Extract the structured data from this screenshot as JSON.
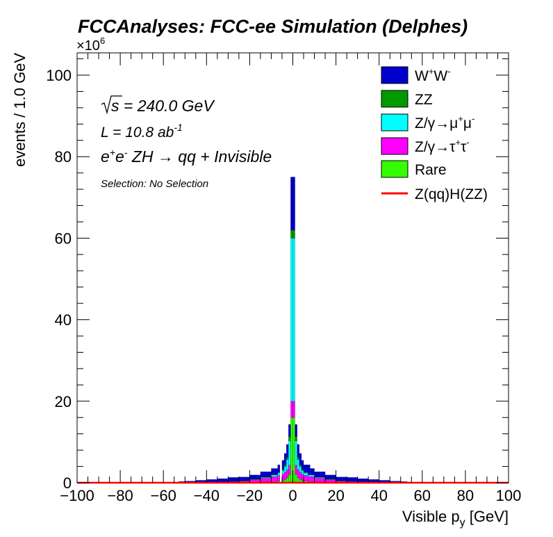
{
  "chart_data": {
    "type": "bar",
    "stacked": true,
    "title": "FCCAnalyses: FCC-ee Simulation (Delphes)",
    "xlabel": "Visible p_y [GeV]",
    "ylabel": "events / 1.0 GeV",
    "xlim": [
      -100,
      100
    ],
    "ylim": [
      0,
      105
    ],
    "y_multiplier": "×10^6",
    "xticks": [
      -100,
      -80,
      -60,
      -40,
      -20,
      0,
      20,
      40,
      60,
      80,
      100
    ],
    "yticks": [
      0,
      20,
      40,
      60,
      80,
      100
    ],
    "grid": false,
    "legend_position": "top-right",
    "annotations": {
      "sqrt_s": "240.0 GeV",
      "luminosity": "10.8 ab",
      "luminosity_exp": "-1",
      "process": "ZH → qq + Invisible",
      "selection": "Selection: No Selection"
    },
    "x_centers": [
      -51.5,
      -47.5,
      -42.5,
      -37.5,
      -32.5,
      -27.5,
      -22.5,
      -17.5,
      -12.5,
      -8.5,
      -6.5,
      -4.5,
      -3.5,
      -2.5,
      -1.5,
      -0.5,
      0.5,
      1.5,
      2.5,
      3.5,
      4.5,
      6.5,
      8.5,
      12.5,
      17.5,
      22.5,
      27.5,
      32.5,
      37.5,
      42.5,
      47.5,
      51.5
    ],
    "x_widths": [
      3,
      5,
      5,
      5,
      5,
      5,
      5,
      5,
      5,
      3,
      1,
      1,
      1,
      1,
      1,
      1,
      1,
      1,
      1,
      1,
      1,
      3,
      3,
      5,
      5,
      5,
      5,
      5,
      5,
      5,
      5,
      3
    ],
    "series": [
      {
        "name": "W+W-",
        "color": "#0000cc",
        "values": [
          0.3,
          0.4,
          0.5,
          0.7,
          0.8,
          1.0,
          0.9,
          1.0,
          1.3,
          1.5,
          1.8,
          2.2,
          2.8,
          3.2,
          3.0,
          13.0,
          13.0,
          3.0,
          3.2,
          2.8,
          2.2,
          1.8,
          1.5,
          1.3,
          1.0,
          0.9,
          1.0,
          0.8,
          0.7,
          0.5,
          0.4,
          0.3
        ]
      },
      {
        "name": "ZZ",
        "color": "#009900",
        "values": [
          0.0,
          0.0,
          0.0,
          0.0,
          0.0,
          0.0,
          0.1,
          0.1,
          0.1,
          0.1,
          0.2,
          0.3,
          0.4,
          0.5,
          1.0,
          2.0,
          2.0,
          1.0,
          0.5,
          0.4,
          0.3,
          0.2,
          0.1,
          0.1,
          0.1,
          0.1,
          0.0,
          0.0,
          0.0,
          0.0,
          0.0,
          0.0
        ]
      },
      {
        "name": "Z/γ→μ+μ-",
        "color": "#00ffff",
        "values": [
          0.0,
          0.0,
          0.0,
          0.0,
          0.0,
          0.0,
          0.0,
          0.1,
          0.2,
          0.4,
          0.6,
          0.9,
          1.4,
          2.5,
          6.0,
          40.0,
          40.0,
          6.0,
          2.5,
          1.4,
          0.9,
          0.6,
          0.4,
          0.2,
          0.1,
          0.0,
          0.0,
          0.0,
          0.0,
          0.0,
          0.0,
          0.0
        ]
      },
      {
        "name": "Z/γ→τ+τ-",
        "color": "#ff00ff",
        "values": [
          0.0,
          0.0,
          0.1,
          0.1,
          0.2,
          0.3,
          0.4,
          0.6,
          0.9,
          1.2,
          1.4,
          1.6,
          1.8,
          2.0,
          2.3,
          4.0,
          4.0,
          2.3,
          2.0,
          1.8,
          1.6,
          1.4,
          1.2,
          0.9,
          0.6,
          0.4,
          0.3,
          0.2,
          0.1,
          0.1,
          0.0,
          0.0
        ]
      },
      {
        "name": "Rare",
        "color": "#33ff00",
        "values": [
          0.0,
          0.0,
          0.0,
          0.0,
          0.0,
          0.0,
          0.0,
          0.1,
          0.2,
          0.3,
          0.4,
          0.5,
          0.8,
          1.2,
          2.0,
          16.0,
          16.0,
          2.0,
          1.2,
          0.8,
          0.5,
          0.4,
          0.3,
          0.2,
          0.1,
          0.0,
          0.0,
          0.0,
          0.0,
          0.0,
          0.0,
          0.0
        ]
      },
      {
        "name": "Z(qq)H(ZZ)",
        "color": "#ff0000",
        "line": true,
        "values": [
          0.0,
          0.0,
          0.0,
          0.0,
          0.0,
          0.0,
          0.0,
          0.0,
          0.0,
          0.0,
          0.0,
          0.0,
          0.0,
          0.0,
          0.0,
          0.05,
          0.05,
          0.0,
          0.0,
          0.0,
          0.0,
          0.0,
          0.0,
          0.0,
          0.0,
          0.0,
          0.0,
          0.0,
          0.0,
          0.0,
          0.0,
          0.0
        ]
      }
    ]
  }
}
